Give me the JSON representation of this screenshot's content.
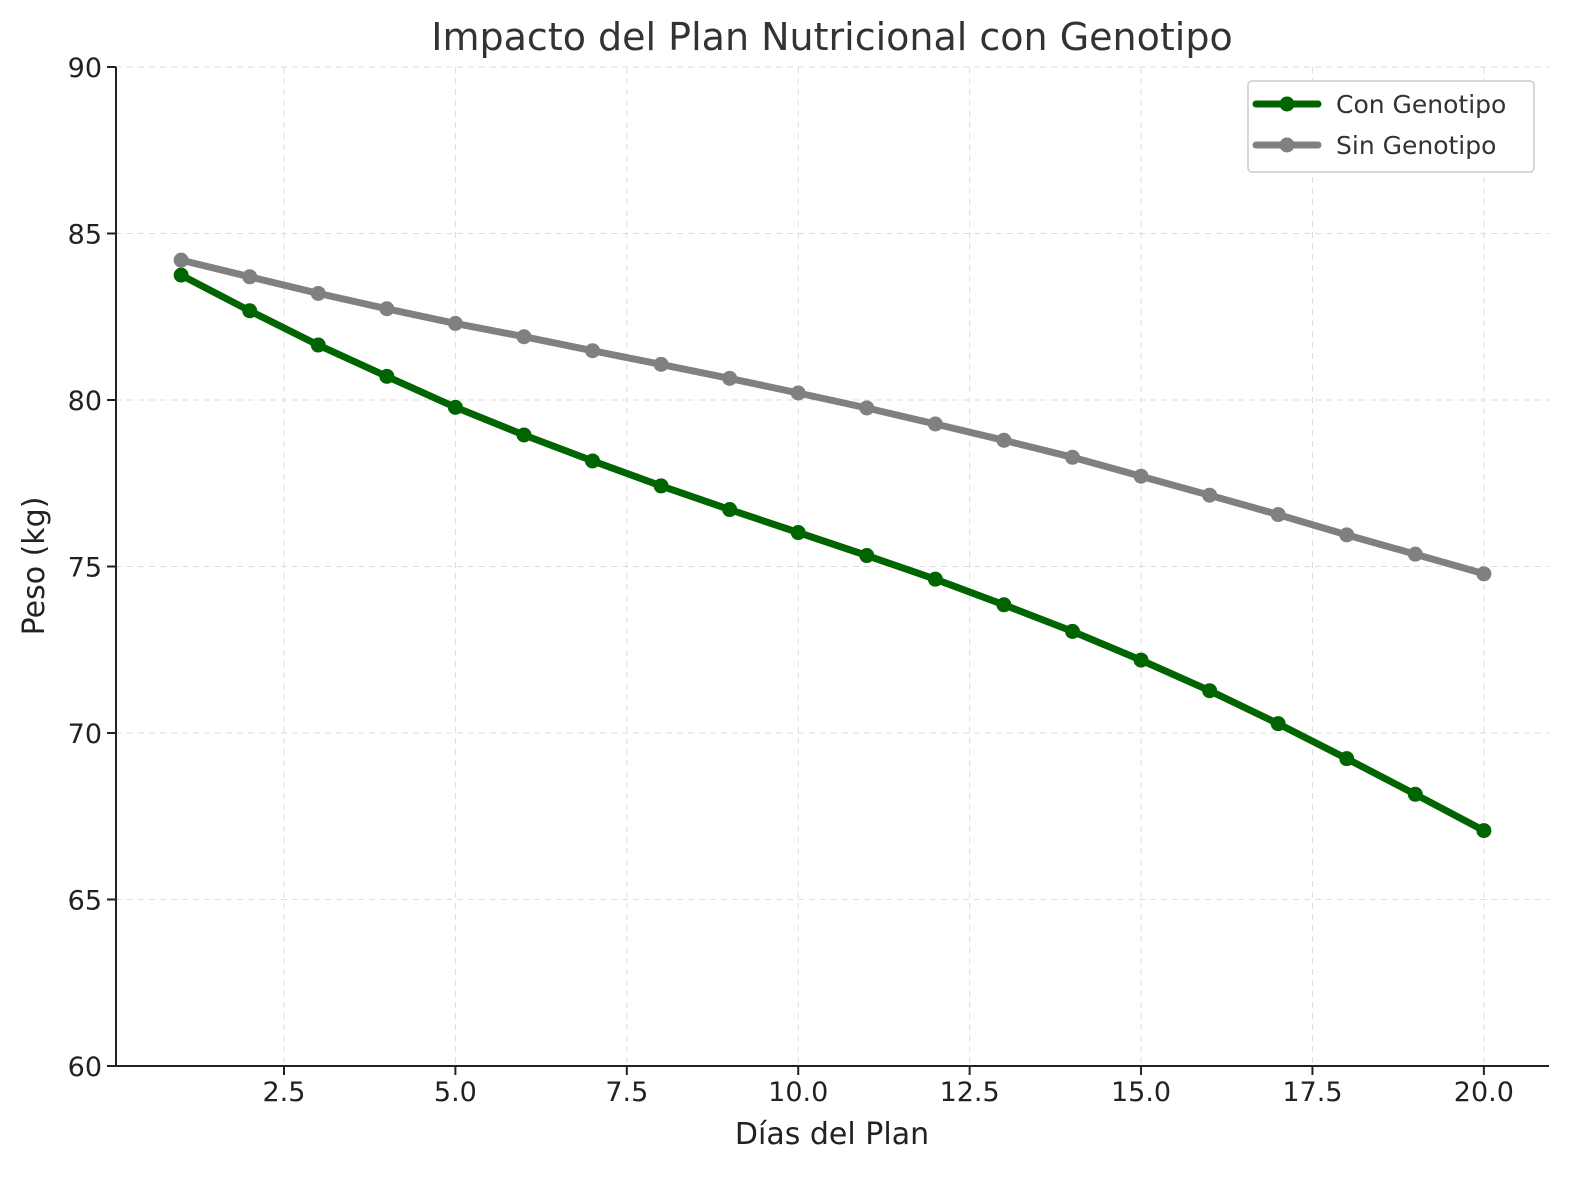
{
  "chart_data": {
    "type": "line",
    "title": "Impacto del Plan Nutricional con Genotipo",
    "xlabel": "Días del Plan",
    "ylabel": "Peso (kg)",
    "xlim": [
      0.05,
      20.95
    ],
    "ylim": [
      60,
      90
    ],
    "xticks": [
      2.5,
      5.0,
      7.5,
      10.0,
      12.5,
      15.0,
      17.5,
      20.0
    ],
    "xtick_labels": [
      "2.5",
      "5.0",
      "7.5",
      "10.0",
      "12.5",
      "15.0",
      "17.5",
      "20.0"
    ],
    "yticks": [
      60,
      65,
      70,
      75,
      80,
      85,
      90
    ],
    "ytick_labels": [
      "60",
      "65",
      "70",
      "75",
      "80",
      "85",
      "90"
    ],
    "grid": true,
    "legend_position": "top-right",
    "x": [
      1,
      2,
      3,
      4,
      5,
      6,
      7,
      8,
      9,
      10,
      11,
      12,
      13,
      14,
      15,
      16,
      17,
      18,
      19,
      20
    ],
    "series": [
      {
        "name": "Con Genotipo",
        "color": "#006400",
        "values": [
          83.75,
          82.68,
          81.65,
          80.71,
          79.78,
          78.95,
          78.17,
          77.42,
          76.71,
          76.02,
          75.33,
          74.62,
          73.85,
          73.05,
          72.19,
          71.27,
          70.28,
          69.23,
          68.16,
          67.07
        ]
      },
      {
        "name": "Sin Genotipo",
        "color": "#808080",
        "values": [
          84.2,
          83.7,
          83.2,
          82.74,
          82.3,
          81.9,
          81.48,
          81.07,
          80.65,
          80.21,
          79.76,
          79.28,
          78.79,
          78.28,
          77.71,
          77.14,
          76.56,
          75.95,
          75.37,
          74.78
        ]
      }
    ]
  }
}
